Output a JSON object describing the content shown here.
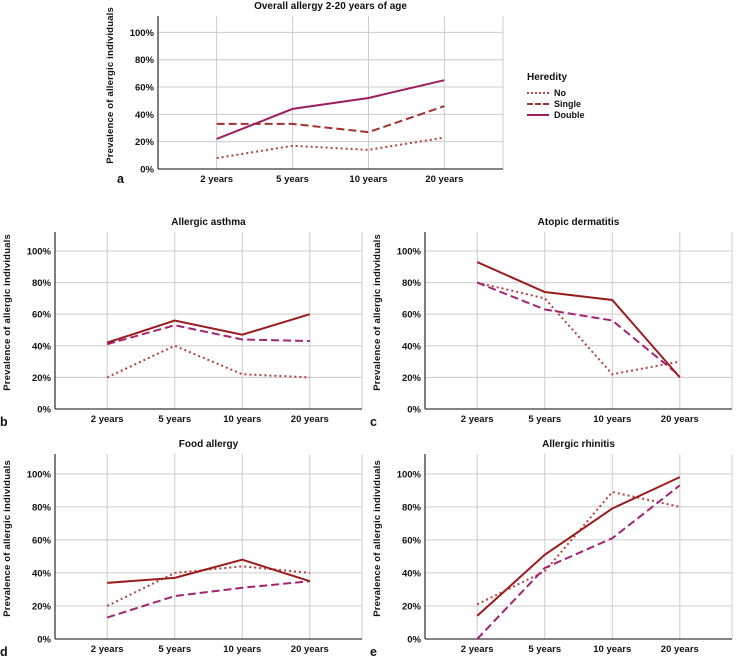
{
  "figure": {
    "ylabel": "Prevalence of allergic individuals",
    "y_tick_labels": [
      "0%",
      "20%",
      "40%",
      "60%",
      "80%",
      "100%"
    ],
    "x_categories": [
      "2 years",
      "5 years",
      "10 years",
      "20 years"
    ],
    "grid_color": "#cccccc",
    "axis_color": "#3a3a3a"
  },
  "legend": {
    "title": "Heredity",
    "entries": [
      {
        "label": "No",
        "style": "dotted",
        "color": "#b5423c"
      },
      {
        "label": "Single",
        "style": "dashed",
        "color": "#a3302c"
      },
      {
        "label": "Double",
        "style": "solid",
        "color": "#9d1d60"
      }
    ]
  },
  "chart_data": [
    {
      "type": "line",
      "panel": "a",
      "title": "Overall allergy 2-20 years of age",
      "xlabel": "",
      "ylabel": "Prevalence of allergic individuals",
      "ylim": [
        0,
        100
      ],
      "grid": true,
      "legend_position": "right",
      "categories": [
        "2 years",
        "5 years",
        "10 years",
        "20 years"
      ],
      "series": [
        {
          "name": "No",
          "style": "dotted",
          "color": "#b5423c",
          "values": [
            8,
            17,
            14,
            23
          ]
        },
        {
          "name": "Single",
          "style": "dashed",
          "color": "#a3302c",
          "values": [
            33,
            33,
            27,
            46
          ]
        },
        {
          "name": "Double",
          "style": "solid",
          "color": "#9d1d60",
          "values": [
            22,
            44,
            52,
            65
          ]
        }
      ]
    },
    {
      "type": "line",
      "panel": "b",
      "title": "Allergic asthma",
      "xlabel": "",
      "ylabel": "Prevalence of allergic individuals",
      "ylim": [
        0,
        100
      ],
      "grid": true,
      "categories": [
        "2 years",
        "5 years",
        "10 years",
        "20 years"
      ],
      "series": [
        {
          "name": "No",
          "style": "dotted",
          "color": "#b5423c",
          "values": [
            20,
            40,
            22,
            20
          ]
        },
        {
          "name": "Single",
          "style": "dashed",
          "color": "#a32472",
          "values": [
            41,
            53,
            44,
            43
          ]
        },
        {
          "name": "Double",
          "style": "solid",
          "color": "#9b1c1e",
          "values": [
            42,
            56,
            47,
            60
          ]
        }
      ]
    },
    {
      "type": "line",
      "panel": "c",
      "title": "Atopic dermatitis",
      "xlabel": "",
      "ylabel": "Prevalence of allergic individuals",
      "ylim": [
        0,
        100
      ],
      "grid": true,
      "categories": [
        "2 years",
        "5 years",
        "10 years",
        "20 years"
      ],
      "series": [
        {
          "name": "No",
          "style": "dotted",
          "color": "#b5423c",
          "values": [
            80,
            70,
            22,
            30
          ]
        },
        {
          "name": "Single",
          "style": "dashed",
          "color": "#a32472",
          "values": [
            80,
            63,
            56,
            21
          ]
        },
        {
          "name": "Double",
          "style": "solid",
          "color": "#9b1c1e",
          "values": [
            93,
            74,
            69,
            20
          ]
        }
      ]
    },
    {
      "type": "line",
      "panel": "d",
      "title": "Food allergy",
      "xlabel": "",
      "ylabel": "Prevalence of allergic individuals",
      "ylim": [
        0,
        100
      ],
      "grid": true,
      "categories": [
        "2 years",
        "5 years",
        "10 years",
        "20 years"
      ],
      "series": [
        {
          "name": "No",
          "style": "dotted",
          "color": "#b5423c",
          "values": [
            20,
            40,
            44,
            40
          ]
        },
        {
          "name": "Single",
          "style": "dashed",
          "color": "#a32472",
          "values": [
            13,
            26,
            31,
            35
          ]
        },
        {
          "name": "Double",
          "style": "solid",
          "color": "#9b1c1e",
          "values": [
            34,
            37,
            48,
            35
          ]
        }
      ]
    },
    {
      "type": "line",
      "panel": "e",
      "title": "Allergic rhinitis",
      "xlabel": "",
      "ylabel": "Prevalence of allergic individuals",
      "ylim": [
        0,
        100
      ],
      "grid": true,
      "categories": [
        "2 years",
        "5 years",
        "10 years",
        "20 years"
      ],
      "series": [
        {
          "name": "No",
          "style": "dotted",
          "color": "#b5423c",
          "values": [
            21,
            41,
            89,
            80
          ]
        },
        {
          "name": "Single",
          "style": "dashed",
          "color": "#a32472",
          "values": [
            0,
            43,
            61,
            93
          ]
        },
        {
          "name": "Double",
          "style": "solid",
          "color": "#9b1c1e",
          "values": [
            14,
            51,
            79,
            98
          ]
        }
      ]
    }
  ]
}
